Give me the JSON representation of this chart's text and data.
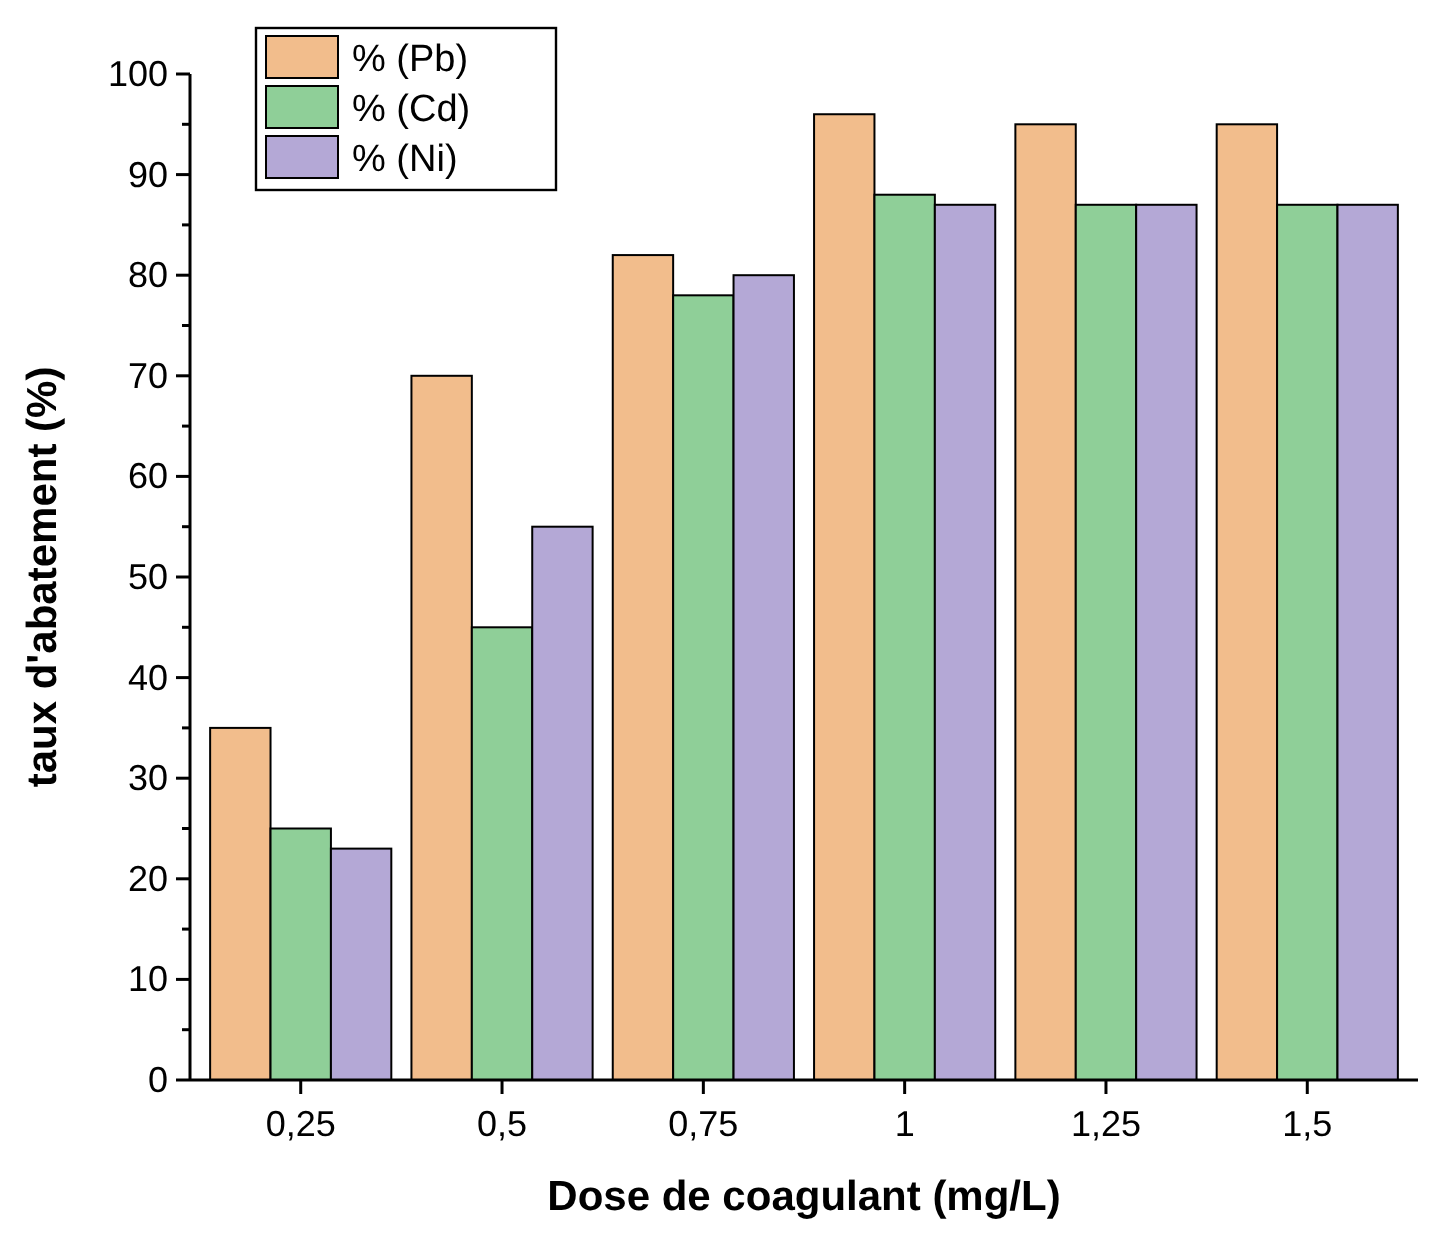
{
  "chart_data": {
    "type": "bar",
    "xlabel": "Dose de coagulant (mg/L)",
    "ylabel": "taux d'abatement (%)",
    "categories": [
      "0,25",
      "0,5",
      "0,75",
      "1",
      "1,25",
      "1,5"
    ],
    "series": [
      {
        "name": "% (Pb)",
        "color": "#f2bd8c",
        "values": [
          35,
          70,
          82,
          96,
          95,
          95
        ]
      },
      {
        "name": "% (Cd)",
        "color": "#8fcf98",
        "values": [
          25,
          45,
          78,
          88,
          87,
          87
        ]
      },
      {
        "name": "% (Ni)",
        "color": "#b4a8d6",
        "values": [
          23,
          55,
          80,
          87,
          87,
          87
        ]
      }
    ],
    "ylim": [
      0,
      100
    ],
    "yticks": [
      0,
      {
        "value": 5,
        "label": null
      },
      10,
      {
        "value": 15,
        "label": null
      },
      20,
      {
        "value": 25,
        "label": null
      },
      30,
      {
        "value": 35,
        "label": null
      },
      40,
      {
        "value": 45,
        "label": null
      },
      50,
      {
        "value": 55,
        "label": null
      },
      60,
      {
        "value": 65,
        "label": null
      },
      70,
      {
        "value": 75,
        "label": null
      },
      80,
      {
        "value": 85,
        "label": null
      },
      90,
      {
        "value": 95,
        "label": null
      },
      100
    ],
    "legend": "top left"
  }
}
